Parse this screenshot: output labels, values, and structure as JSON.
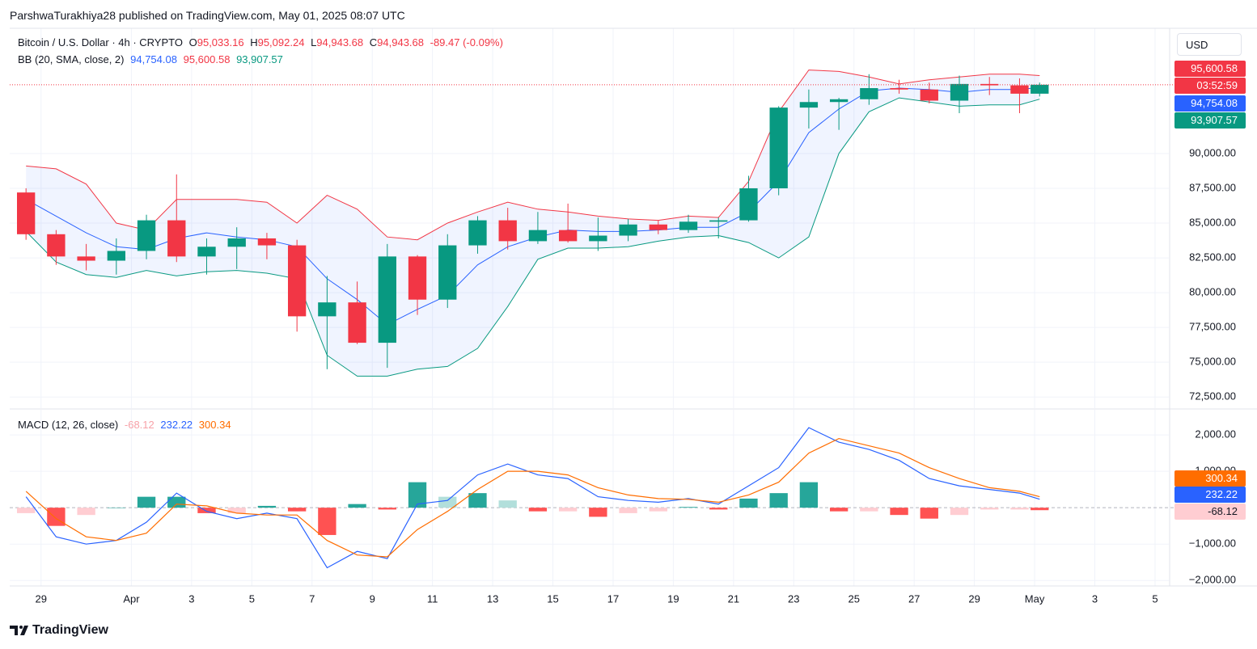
{
  "attribution": "ParshwaTurakhiya28 published on TradingView.com, May 01, 2025 08:07 UTC",
  "currency_button": "USD",
  "footer": "TradingView",
  "chart_data": [
    {
      "type": "candlestick",
      "title": "Bitcoin / U.S. Dollar · 4h · CRYPTO",
      "ohlc_legend": [
        {
          "label": "O",
          "value": "95,033.16"
        },
        {
          "label": "H",
          "value": "95,092.24"
        },
        {
          "label": "L",
          "value": "94,943.68"
        },
        {
          "label": "C",
          "value": "94,943.68"
        }
      ],
      "change": "-89.47 (-0.09%)",
      "indicator": {
        "name": "BB (20, SMA, close, 2)",
        "values": [
          "94,754.08",
          "95,600.58",
          "93,907.57"
        ]
      },
      "badges": [
        "95,600.58",
        "03:52:59",
        "94,754.08",
        "93,907.57"
      ],
      "x": [
        "03-28T12:00",
        "03-29T12:00",
        "03-30T12:00",
        "03-31T12:00",
        "04-01T12:00",
        "04-02T12:00",
        "04-03T12:00",
        "04-04T12:00",
        "04-05T12:00",
        "04-06T12:00",
        "04-07T12:00",
        "04-08T12:00",
        "04-09T12:00",
        "04-10T12:00",
        "04-11T12:00",
        "04-12T12:00",
        "04-13T12:00",
        "04-14T12:00",
        "04-15T12:00",
        "04-16T12:00",
        "04-17T12:00",
        "04-18T12:00",
        "04-19T12:00",
        "04-20T12:00",
        "04-21T12:00",
        "04-22T12:00",
        "04-23T12:00",
        "04-24T12:00",
        "04-25T12:00",
        "04-26T12:00",
        "04-27T12:00",
        "04-28T12:00",
        "04-29T12:00",
        "04-30T12:00",
        "05-01T04:00"
      ],
      "open": [
        87200,
        84200,
        82600,
        82300,
        83000,
        85200,
        82600,
        83300,
        83900,
        83400,
        78300,
        79300,
        76400,
        82600,
        79500,
        83400,
        85200,
        83700,
        84500,
        83700,
        84100,
        84900,
        84500,
        85100,
        85200,
        87500,
        93300,
        93700,
        93900,
        94700,
        94600,
        93800,
        95000,
        94900,
        94300
      ],
      "high": [
        87500,
        84500,
        83500,
        83900,
        85600,
        88500,
        83900,
        84700,
        84300,
        83800,
        81200,
        80800,
        83500,
        82700,
        84200,
        85500,
        86100,
        85800,
        86400,
        85400,
        85300,
        85200,
        85600,
        85400,
        88400,
        93400,
        94600,
        94000,
        95700,
        95300,
        95100,
        95600,
        95500,
        95400,
        95100
      ],
      "low": [
        83800,
        82000,
        81600,
        81300,
        82400,
        82200,
        81300,
        81700,
        82400,
        77200,
        74500,
        76300,
        74600,
        78400,
        78900,
        82800,
        83100,
        83500,
        83600,
        83000,
        83700,
        84200,
        84300,
        83900,
        85100,
        87000,
        91800,
        91700,
        93500,
        94300,
        93600,
        92900,
        94200,
        92900,
        94100
      ],
      "close": [
        84200,
        82600,
        82300,
        83000,
        85200,
        82600,
        83300,
        83900,
        83400,
        78300,
        79300,
        76400,
        82600,
        79500,
        83400,
        85200,
        83700,
        84500,
        83700,
        84100,
        84900,
        84500,
        85100,
        85200,
        87500,
        93300,
        93700,
        93900,
        94700,
        94600,
        93800,
        95000,
        94900,
        94300,
        94944
      ],
      "up_color": "#089981",
      "down_color": "#f23645",
      "series": [
        {
          "color": "#f23645",
          "values": [
            89100,
            88900,
            87800,
            85000,
            84500,
            86700,
            86700,
            86700,
            86500,
            85000,
            87000,
            86000,
            84000,
            83800,
            85000,
            85800,
            86500,
            86000,
            85800,
            85500,
            85300,
            85200,
            85500,
            85400,
            88000,
            93000,
            96000,
            95900,
            95500,
            95000,
            95300,
            95500,
            95700,
            95700,
            95600
          ]
        },
        {
          "color": "#2962ff",
          "values": [
            86700,
            85500,
            84300,
            83300,
            83100,
            83900,
            84300,
            84000,
            83800,
            83300,
            81000,
            79500,
            77700,
            78800,
            79800,
            82000,
            83300,
            84000,
            84500,
            84400,
            84400,
            84500,
            84700,
            84700,
            85800,
            88000,
            91500,
            93200,
            94500,
            94700,
            94600,
            94400,
            94600,
            94600,
            94754
          ]
        },
        {
          "color": "#089981",
          "values": [
            84400,
            82200,
            81300,
            81100,
            81600,
            81200,
            81500,
            81600,
            81400,
            81000,
            75500,
            74000,
            74000,
            74500,
            74700,
            76000,
            79000,
            82400,
            83200,
            83200,
            83300,
            83700,
            84000,
            84100,
            83600,
            82500,
            84000,
            90000,
            93000,
            94000,
            93700,
            93400,
            93500,
            93500,
            93908
          ]
        }
      ],
      "band_fill": "#2962ff",
      "xlim": [
        "03-27T23:00",
        "05-05T11:00"
      ],
      "xticks": [
        {
          "value": "03-29T00:00",
          "label": "29"
        },
        {
          "value": "04-01T00:00",
          "label": "Apr"
        },
        {
          "value": "04-03T00:00",
          "label": "3"
        },
        {
          "value": "04-05T00:00",
          "label": "5"
        },
        {
          "value": "04-07T00:00",
          "label": "7"
        },
        {
          "value": "04-09T00:00",
          "label": "9"
        },
        {
          "value": "04-11T00:00",
          "label": "11"
        },
        {
          "value": "04-13T00:00",
          "label": "13"
        },
        {
          "value": "04-15T00:00",
          "label": "15"
        },
        {
          "value": "04-17T00:00",
          "label": "17"
        },
        {
          "value": "04-19T00:00",
          "label": "19"
        },
        {
          "value": "04-21T00:00",
          "label": "21"
        },
        {
          "value": "04-23T00:00",
          "label": "23"
        },
        {
          "value": "04-25T00:00",
          "label": "25"
        },
        {
          "value": "04-27T00:00",
          "label": "27"
        },
        {
          "value": "04-29T00:00",
          "label": "29"
        },
        {
          "value": "05-01T00:00",
          "label": "May"
        },
        {
          "value": "05-03T00:00",
          "label": "3"
        },
        {
          "value": "05-05T00:00",
          "label": "5"
        }
      ],
      "ylim": [
        71700,
        99000
      ],
      "yticks": [
        {
          "value": 72500,
          "label": "72,500.00"
        },
        {
          "value": 75000,
          "label": "75,000.00"
        },
        {
          "value": 77500,
          "label": "77,500.00"
        },
        {
          "value": 80000,
          "label": "80,000.00"
        },
        {
          "value": 82500,
          "label": "82,500.00"
        },
        {
          "value": 85000,
          "label": "85,000.00"
        },
        {
          "value": 87500,
          "label": "87,500.00"
        },
        {
          "value": 90000,
          "label": "90,000.00"
        }
      ],
      "grid": true
    },
    {
      "type": "macd",
      "title": "MACD (12, 26, close)",
      "legend_values": [
        "-68.12",
        "232.22",
        "300.34"
      ],
      "badges": [
        "300.34",
        "232.22",
        "-68.12"
      ],
      "x": [
        "03-28T12:00",
        "03-29T12:00",
        "03-30T12:00",
        "03-31T12:00",
        "04-01T12:00",
        "04-02T12:00",
        "04-03T12:00",
        "04-04T12:00",
        "04-05T12:00",
        "04-06T12:00",
        "04-07T12:00",
        "04-08T12:00",
        "04-09T12:00",
        "04-10T12:00",
        "04-11T12:00",
        "04-12T12:00",
        "04-13T12:00",
        "04-14T12:00",
        "04-15T12:00",
        "04-16T12:00",
        "04-17T12:00",
        "04-18T12:00",
        "04-19T12:00",
        "04-20T12:00",
        "04-21T12:00",
        "04-22T12:00",
        "04-23T12:00",
        "04-24T12:00",
        "04-25T12:00",
        "04-26T12:00",
        "04-27T12:00",
        "04-28T12:00",
        "04-29T12:00",
        "04-30T12:00",
        "05-01T04:00"
      ],
      "series": [
        {
          "color": "#2962ff",
          "values": [
            300,
            -800,
            -1000,
            -900,
            -400,
            400,
            -100,
            -300,
            -150,
            -300,
            -1650,
            -1200,
            -1400,
            100,
            200,
            900,
            1200,
            900,
            800,
            300,
            200,
            150,
            250,
            100,
            600,
            1100,
            2200,
            1800,
            1600,
            1300,
            800,
            600,
            500,
            400,
            232.22
          ]
        },
        {
          "color": "#ff6d00",
          "values": [
            450,
            -300,
            -800,
            -900,
            -700,
            100,
            50,
            -150,
            -200,
            -200,
            -900,
            -1300,
            -1350,
            -600,
            -100,
            500,
            1000,
            1000,
            900,
            550,
            350,
            250,
            230,
            150,
            350,
            700,
            1500,
            1900,
            1700,
            1500,
            1100,
            800,
            550,
            450,
            300.34
          ]
        }
      ],
      "histogram": [
        -150,
        -500,
        -200,
        0,
        300,
        300,
        -150,
        -150,
        50,
        -100,
        -750,
        100,
        -50,
        700,
        300,
        400,
        200,
        -100,
        -100,
        -250,
        -150,
        -100,
        20,
        -50,
        250,
        400,
        700,
        -100,
        -100,
        -200,
        -300,
        -200,
        -50,
        -50,
        -68.12
      ],
      "histogram_colors": [
        "#26a69a",
        "#b2dfdb",
        "#ff5252",
        "#ffcdd2"
      ],
      "xlim": [
        "03-27T23:00",
        "05-05T11:00"
      ],
      "ylim": [
        -2150,
        2690
      ],
      "yticks": [
        {
          "value": -2000,
          "label": "−2,000.00"
        },
        {
          "value": -1000,
          "label": "−1,000.00"
        },
        {
          "value": 1000,
          "label": "1,000.00"
        },
        {
          "value": 2000,
          "label": "2,000.00"
        }
      ],
      "grid": true
    }
  ]
}
